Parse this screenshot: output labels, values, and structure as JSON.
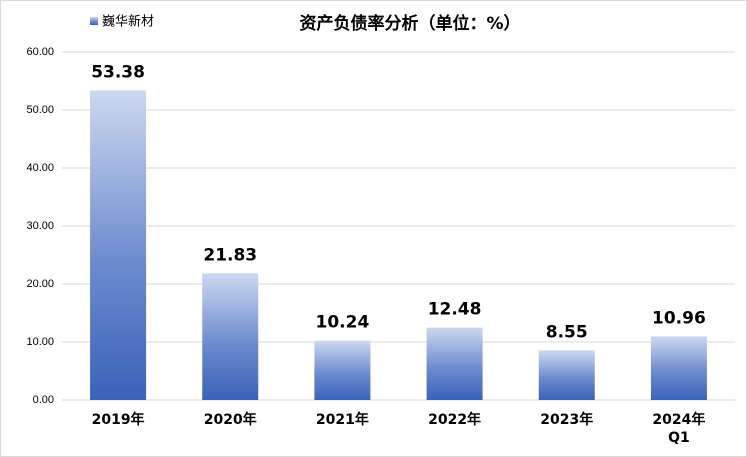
{
  "chart_data": {
    "type": "bar",
    "title": "资产负债率分析（单位：%）",
    "legend": "巍华新材",
    "categories": [
      "2019年",
      "2020年",
      "2021年",
      "2022年",
      "2023年",
      "2024年\nQ1"
    ],
    "values": [
      53.38,
      21.83,
      10.24,
      12.48,
      8.55,
      10.96
    ],
    "color": "#3a62b8",
    "ylim": [
      0,
      60
    ],
    "yticks": [
      {
        "value": 0,
        "label": "0.00"
      },
      {
        "value": 10,
        "label": "10.00"
      },
      {
        "value": 20,
        "label": "20.00"
      },
      {
        "value": 30,
        "label": "30.00"
      },
      {
        "value": 40,
        "label": "40.00"
      },
      {
        "value": 50,
        "label": "50.00"
      },
      {
        "value": 60,
        "label": "60.00"
      }
    ],
    "grid": true
  }
}
